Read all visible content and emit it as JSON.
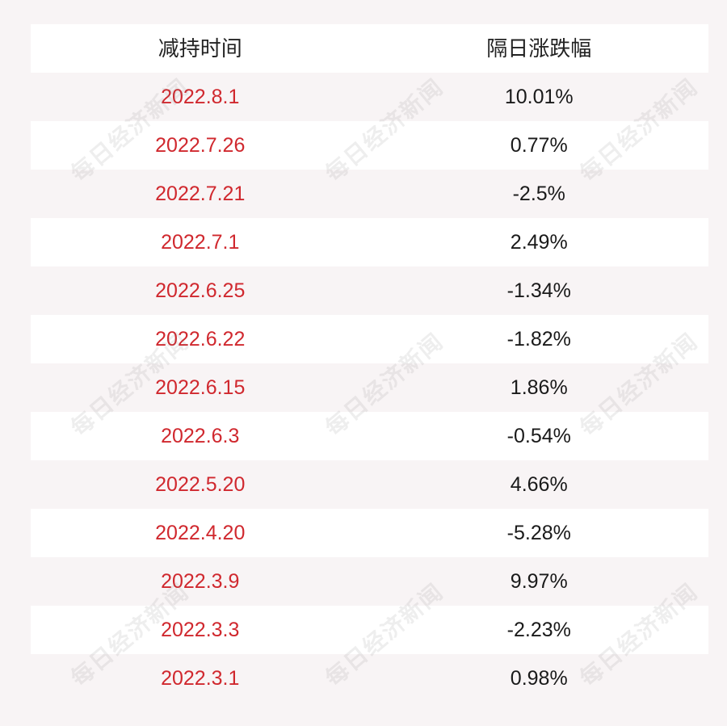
{
  "header": {
    "col_date": "减持时间",
    "col_change": "隔日涨跌幅"
  },
  "rows": [
    {
      "date": "2022.8.1",
      "change": "10.01%"
    },
    {
      "date": "2022.7.26",
      "change": "0.77%"
    },
    {
      "date": "2022.7.21",
      "change": "-2.5%"
    },
    {
      "date": "2022.7.1",
      "change": "2.49%"
    },
    {
      "date": "2022.6.25",
      "change": "-1.34%"
    },
    {
      "date": "2022.6.22",
      "change": "-1.82%"
    },
    {
      "date": "2022.6.15",
      "change": "1.86%"
    },
    {
      "date": "2022.6.3",
      "change": "-0.54%"
    },
    {
      "date": "2022.5.20",
      "change": "4.66%"
    },
    {
      "date": "2022.4.20",
      "change": "-5.28%"
    },
    {
      "date": "2022.3.9",
      "change": "9.97%"
    },
    {
      "date": "2022.3.3",
      "change": "-2.23%"
    },
    {
      "date": "2022.3.1",
      "change": "0.98%"
    }
  ],
  "watermark": "每日经济新闻",
  "colors": {
    "date_text": "#d0282e",
    "row_white": "#ffffff",
    "row_tint": "#f8f4f5"
  }
}
